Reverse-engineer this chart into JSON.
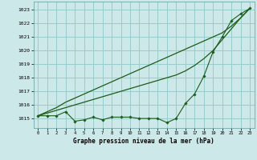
{
  "title": "Graphe pression niveau de la mer (hPa)",
  "background_color": "#cce8e8",
  "grid_color": "#99cccc",
  "line_color": "#1a5c1a",
  "x_labels": [
    "0",
    "1",
    "2",
    "3",
    "4",
    "5",
    "6",
    "7",
    "8",
    "9",
    "10",
    "11",
    "12",
    "13",
    "14",
    "15",
    "16",
    "17",
    "18",
    "19",
    "20",
    "21",
    "22",
    "23"
  ],
  "ylim": [
    1014.3,
    1023.6
  ],
  "yticks": [
    1015,
    1016,
    1017,
    1018,
    1019,
    1020,
    1021,
    1022,
    1023
  ],
  "line1": [
    1015.2,
    1015.5,
    1015.8,
    1016.2,
    1016.5,
    1016.8,
    1017.1,
    1017.4,
    1017.7,
    1018.0,
    1018.3,
    1018.6,
    1018.9,
    1019.2,
    1019.5,
    1019.8,
    1020.1,
    1020.4,
    1020.7,
    1021.0,
    1021.3,
    1021.8,
    1022.4,
    1023.1
  ],
  "line2": [
    1015.2,
    1015.4,
    1015.6,
    1015.8,
    1016.0,
    1016.2,
    1016.4,
    1016.6,
    1016.8,
    1017.0,
    1017.2,
    1017.4,
    1017.6,
    1017.8,
    1018.0,
    1018.2,
    1018.5,
    1018.9,
    1019.4,
    1020.0,
    1020.8,
    1021.6,
    1022.4,
    1023.1
  ],
  "line3": [
    1015.2,
    1015.2,
    1015.2,
    1015.5,
    1014.8,
    1014.9,
    1015.1,
    1014.9,
    1015.1,
    1015.1,
    1015.1,
    1015.0,
    1015.0,
    1015.0,
    1014.7,
    1015.0,
    1016.1,
    1016.8,
    1018.1,
    1019.9,
    1021.0,
    1022.2,
    1022.7,
    1023.1
  ]
}
